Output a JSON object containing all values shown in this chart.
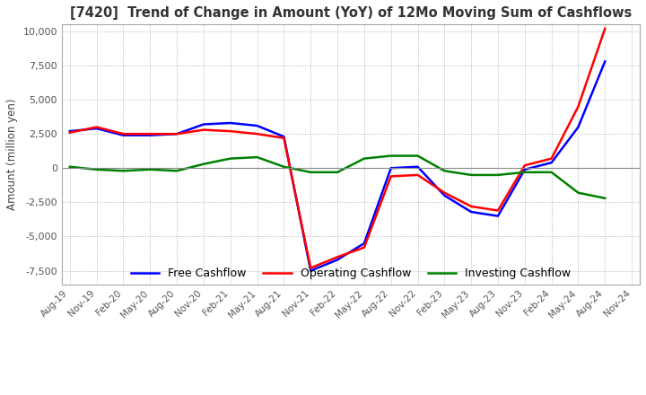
{
  "title": "[7420]  Trend of Change in Amount (YoY) of 12Mo Moving Sum of Cashflows",
  "ylabel": "Amount (million yen)",
  "ylim": [
    -8500,
    10500
  ],
  "yticks": [
    -7500,
    -5000,
    -2500,
    0,
    2500,
    5000,
    7500,
    10000
  ],
  "x_labels": [
    "Aug-19",
    "Nov-19",
    "Feb-20",
    "May-20",
    "Aug-20",
    "Nov-20",
    "Feb-21",
    "May-21",
    "Aug-21",
    "Nov-21",
    "Feb-22",
    "May-22",
    "Aug-22",
    "Nov-22",
    "Feb-23",
    "May-23",
    "Aug-23",
    "Nov-23",
    "Feb-24",
    "May-24",
    "Aug-24",
    "Nov-24"
  ],
  "operating": [
    2600,
    3000,
    2500,
    2500,
    2500,
    2800,
    2700,
    2500,
    2200,
    -7300,
    -6500,
    -5800,
    -600,
    -500,
    -1800,
    -2800,
    -3100,
    200,
    700,
    4500,
    10200,
    null
  ],
  "investing": [
    100,
    -100,
    -200,
    -100,
    -200,
    300,
    700,
    800,
    100,
    -300,
    -300,
    700,
    900,
    900,
    -200,
    -500,
    -500,
    -300,
    -300,
    -1800,
    -2200,
    null
  ],
  "free": [
    2700,
    2900,
    2400,
    2400,
    2500,
    3200,
    3300,
    3100,
    2300,
    -7500,
    -6700,
    -5500,
    0,
    100,
    -2000,
    -3200,
    -3500,
    -100,
    400,
    3000,
    7800,
    null
  ],
  "operating_color": "#ff0000",
  "investing_color": "#008000",
  "free_color": "#0000ff",
  "background_color": "#ffffff",
  "grid_color": "#b0b0b0"
}
